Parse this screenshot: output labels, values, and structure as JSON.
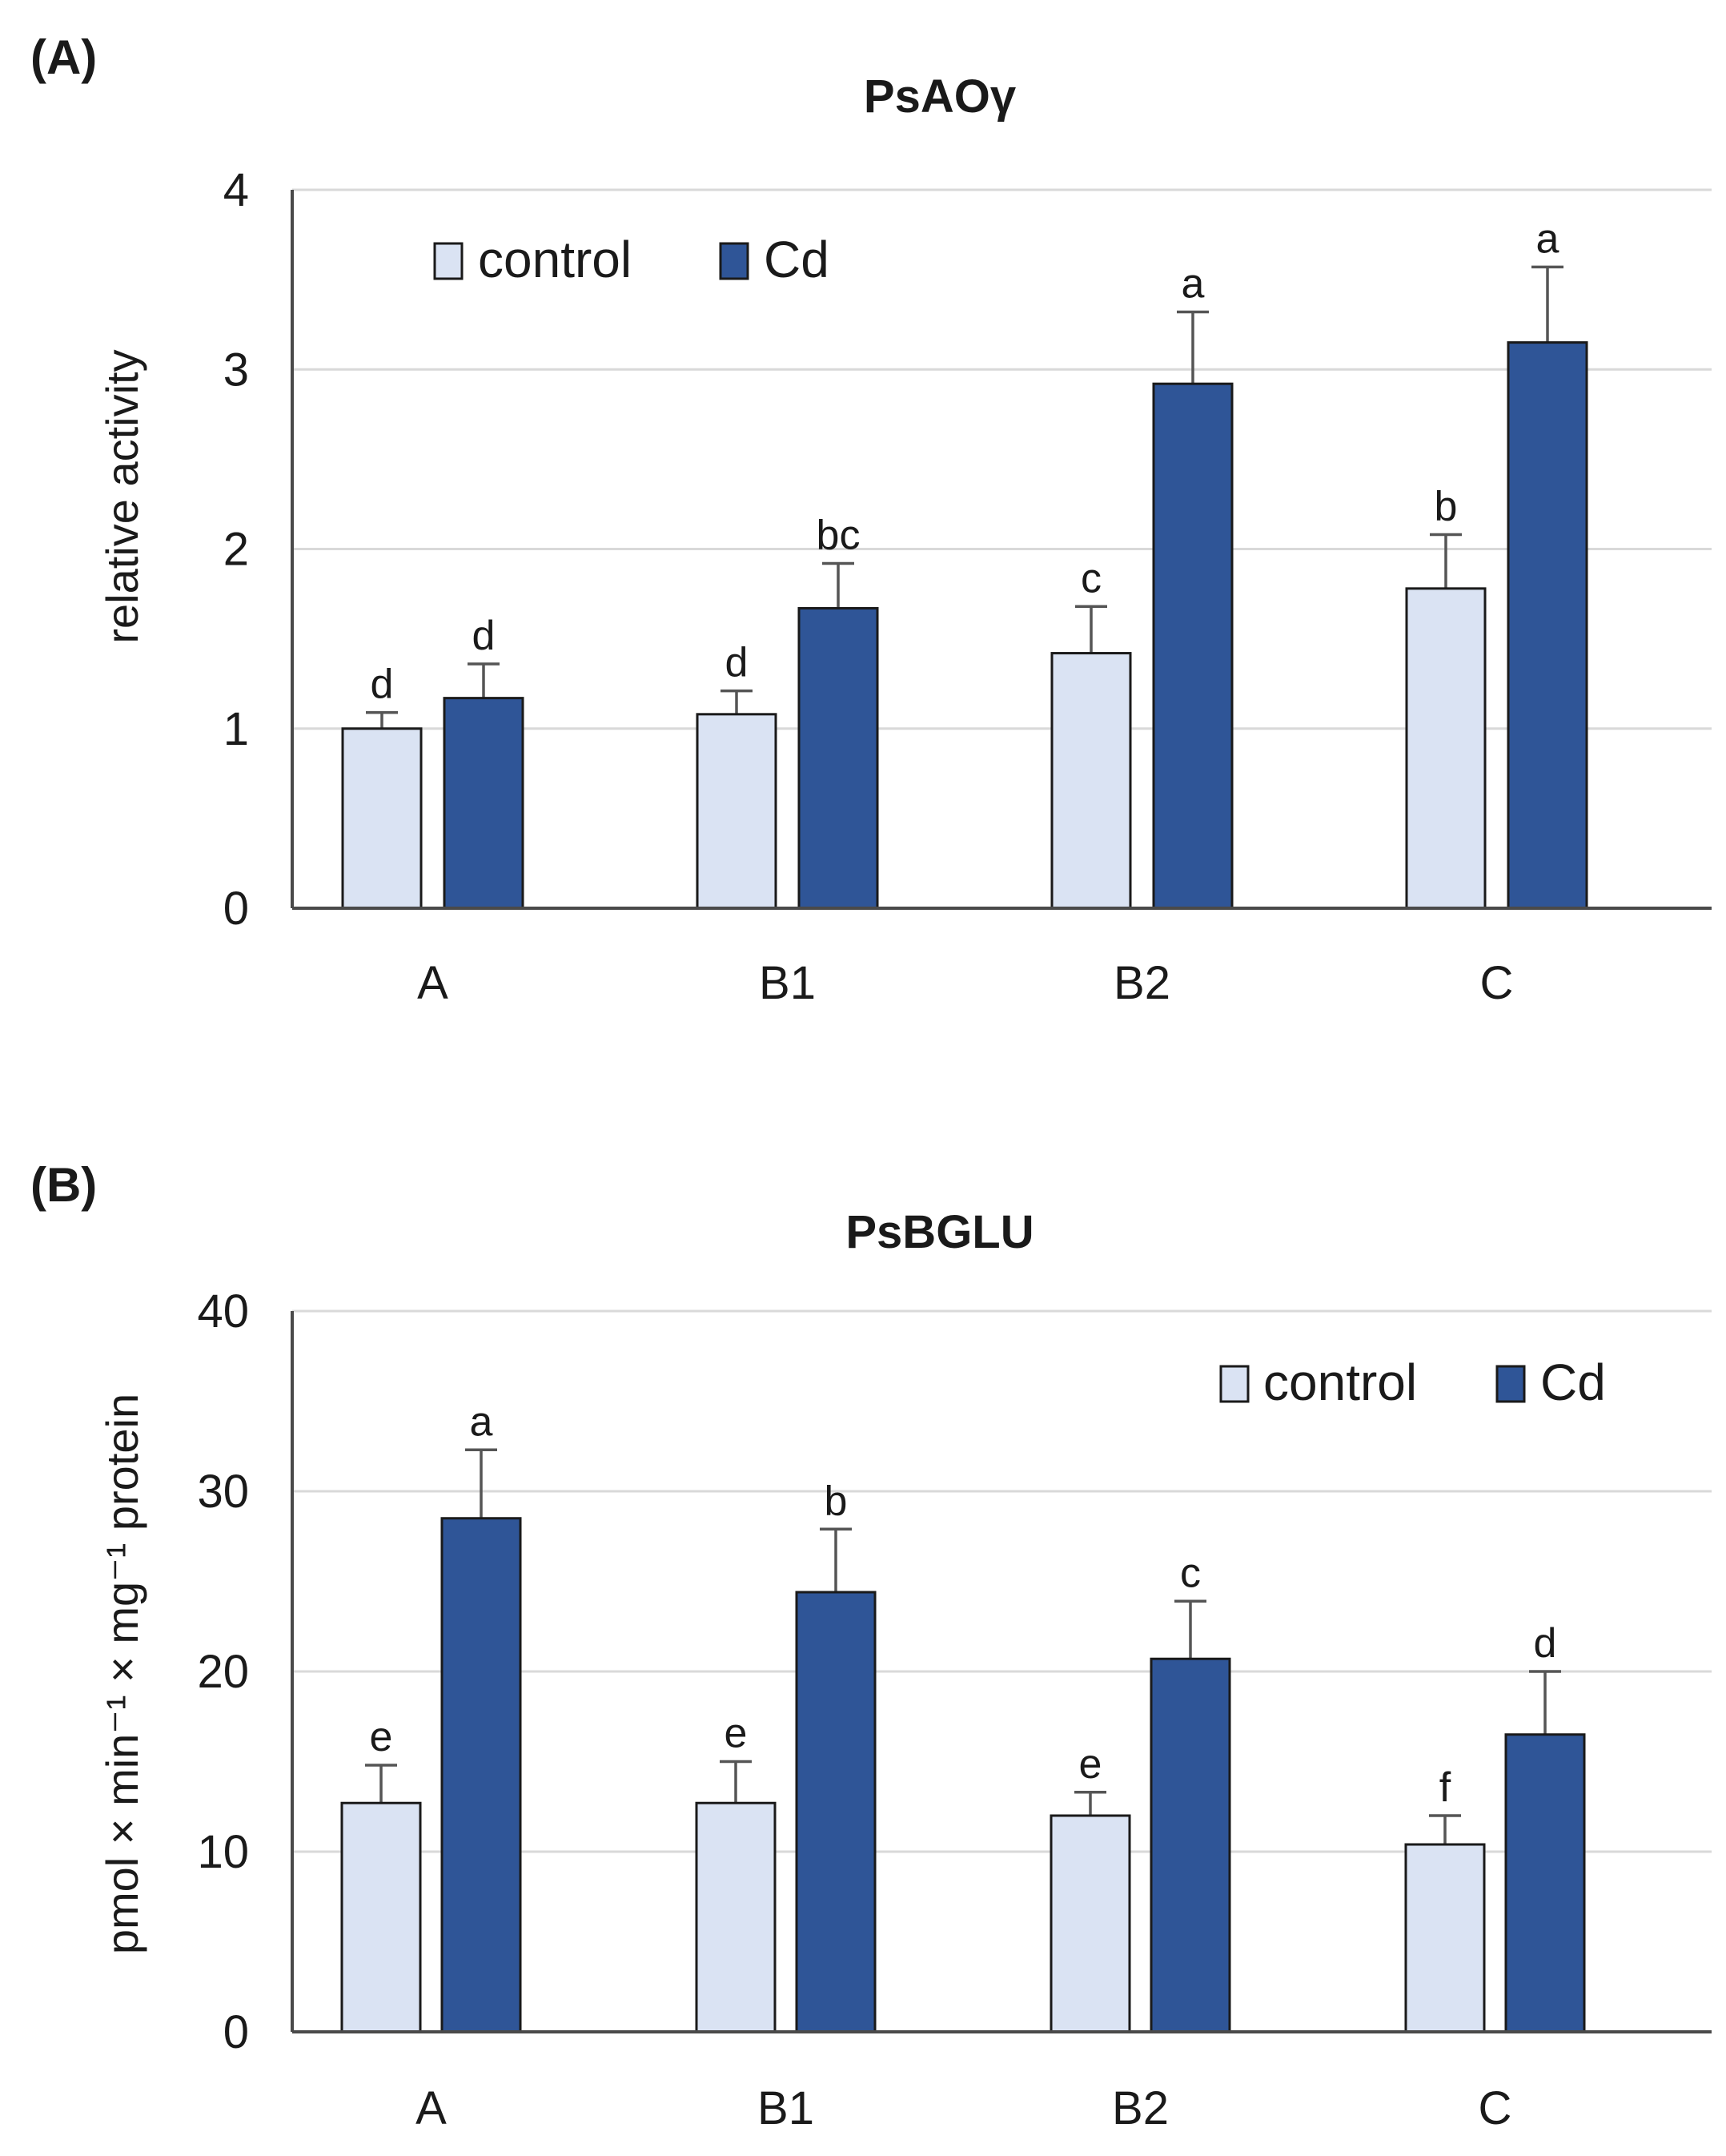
{
  "chart_data": [
    {
      "type": "bar",
      "panel": "(A)",
      "title": "PsAOγ",
      "xlabel": "",
      "ylabel": "relative activity",
      "ylim": [
        0,
        4
      ],
      "yticks": [
        "0",
        "1",
        "2",
        "3",
        "4"
      ],
      "categories": [
        "A",
        "B1",
        "B2",
        "C"
      ],
      "grid": true,
      "legend_position": "top-left",
      "series": [
        {
          "name": "control",
          "color": "#dae3f3",
          "values": [
            1.0,
            1.08,
            1.42,
            1.78
          ],
          "errors": [
            0.09,
            0.13,
            0.26,
            0.3
          ],
          "labels": [
            "d",
            "d",
            "c",
            "b"
          ]
        },
        {
          "name": "Cd",
          "color": "#2f5597",
          "values": [
            1.17,
            1.67,
            2.92,
            3.15
          ],
          "errors": [
            0.19,
            0.25,
            0.4,
            0.42
          ],
          "labels": [
            "d",
            "bc",
            "a",
            "a"
          ]
        }
      ]
    },
    {
      "type": "bar",
      "panel": "(B)",
      "title": "PsBGLU",
      "xlabel": "",
      "ylabel": "pmol × min⁻¹ × mg⁻¹ protein",
      "ylim": [
        0,
        40
      ],
      "yticks": [
        "0",
        "10",
        "20",
        "30",
        "40"
      ],
      "categories": [
        "A",
        "B1",
        "B2",
        "C"
      ],
      "grid": true,
      "legend_position": "top-right",
      "series": [
        {
          "name": "control",
          "color": "#dae3f3",
          "values": [
            12.7,
            12.7,
            12.0,
            10.4
          ],
          "errors": [
            2.1,
            2.3,
            1.3,
            1.6
          ],
          "labels": [
            "e",
            "e",
            "e",
            "f"
          ]
        },
        {
          "name": "Cd",
          "color": "#2f5597",
          "values": [
            28.5,
            24.4,
            20.7,
            16.5
          ],
          "errors": [
            3.8,
            3.5,
            3.2,
            3.5
          ],
          "labels": [
            "a",
            "b",
            "c",
            "d"
          ]
        }
      ]
    }
  ]
}
